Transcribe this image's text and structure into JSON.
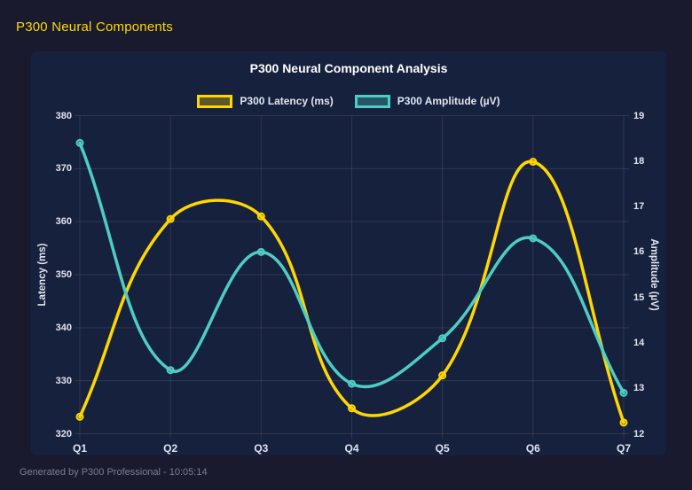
{
  "page": {
    "header_title": "P300 Neural Components",
    "footer_text": "Generated by P300 Professional - 10:05:14"
  },
  "colors": {
    "page_bg": "#1a1a2e",
    "panel_bg": "#16213e",
    "gold": "#ffd700",
    "teal": "#4ecdc4",
    "grid": "rgba(255,255,255,0.10)",
    "tick_text": "#e2e4ee",
    "title_text": "#ffffff",
    "muted_text": "#7d7d90"
  },
  "chart_data": {
    "type": "line",
    "title": "P300 Neural Component Analysis",
    "categories": [
      "Q1",
      "Q2",
      "Q3",
      "Q4",
      "Q5",
      "Q6",
      "Q7"
    ],
    "series": [
      {
        "name": "P300 Latency (ms)",
        "axis": "left",
        "color": "#ffd700",
        "values": [
          323.2,
          360.5,
          361.0,
          324.8,
          331.0,
          371.3,
          322.1
        ]
      },
      {
        "name": "P300 Amplitude (µV)",
        "axis": "right",
        "color": "#4ecdc4",
        "values": [
          18.4,
          13.4,
          16.0,
          13.1,
          14.1,
          16.3,
          12.9
        ]
      }
    ],
    "left_axis": {
      "label": "Latency (ms)",
      "min": 320,
      "max": 380,
      "step": 10
    },
    "right_axis": {
      "label": "Amplitude (µV)",
      "min": 12,
      "max": 19,
      "step": 1
    },
    "legend_position": "top",
    "grid": true,
    "line_tension": 0.4
  }
}
